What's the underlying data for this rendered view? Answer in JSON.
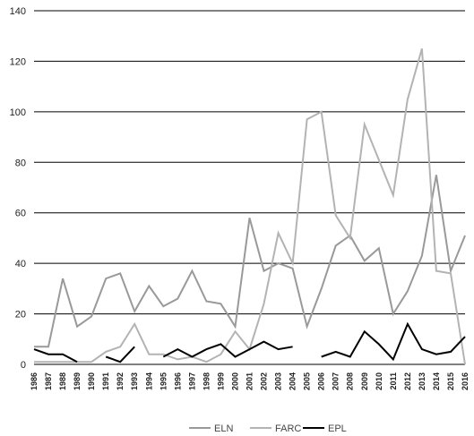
{
  "chart_data": {
    "type": "line",
    "title": "",
    "xlabel": "",
    "ylabel": "",
    "ylim": [
      0,
      140
    ],
    "yticks": [
      0,
      20,
      40,
      60,
      80,
      100,
      120,
      140
    ],
    "grid": "horizontal",
    "legend_position": "bottom",
    "categories": [
      "1986",
      "1987",
      "1988",
      "1989",
      "1990",
      "1991",
      "1992",
      "1993",
      "1994",
      "1995",
      "1996",
      "1997",
      "1998",
      "1999",
      "2000",
      "2001",
      "2002",
      "2003",
      "2004",
      "2005",
      "2006",
      "2007",
      "2008",
      "2009",
      "2010",
      "2011",
      "2012",
      "2013",
      "2014",
      "2015",
      "2016"
    ],
    "series": [
      {
        "name": "ELN",
        "color": "#999999",
        "values": [
          7,
          7,
          34,
          15,
          19,
          34,
          36,
          21,
          31,
          23,
          26,
          37,
          25,
          24,
          15,
          58,
          37,
          40,
          38,
          15,
          30,
          47,
          51,
          41,
          46,
          20,
          29,
          43,
          75,
          37,
          51
        ]
      },
      {
        "name": "FARC",
        "color": "#b3b3b3",
        "values": [
          1,
          1,
          1,
          1,
          1,
          5,
          7,
          16,
          4,
          4,
          2,
          3,
          1,
          4,
          13,
          6,
          24,
          52,
          40,
          97,
          100,
          59,
          50,
          95,
          81,
          67,
          105,
          125,
          37,
          36,
          0
        ]
      },
      {
        "name": "EPL",
        "color": "#000000",
        "values": [
          6,
          4,
          4,
          1,
          null,
          3,
          1,
          7,
          null,
          3,
          6,
          3,
          6,
          8,
          3,
          6,
          9,
          6,
          7,
          null,
          3,
          5,
          3,
          13,
          8,
          2,
          16,
          6,
          4,
          5,
          11
        ]
      }
    ]
  }
}
